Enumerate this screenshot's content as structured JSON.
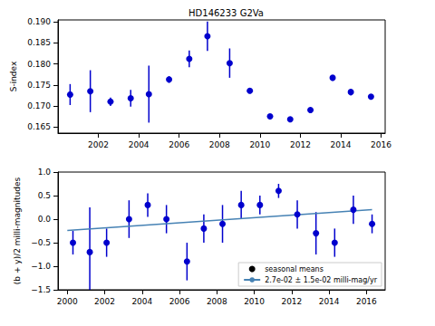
{
  "chart_data": [
    {
      "type": "scatter",
      "title": "HD146233 G2Va",
      "y_label": "S-index",
      "x": [
        2000.6,
        2001.6,
        2002.6,
        2003.6,
        2004.5,
        2005.5,
        2006.5,
        2007.4,
        2008.5,
        2009.5,
        2010.5,
        2011.5,
        2012.5,
        2013.6,
        2014.5,
        2015.5
      ],
      "values": [
        0.1727,
        0.1735,
        0.171,
        0.1718,
        0.1728,
        0.1763,
        0.1812,
        0.1866,
        0.1802,
        0.1736,
        0.1675,
        0.1668,
        0.169,
        0.1767,
        0.1733,
        0.1722
      ],
      "errors": [
        0.0025,
        0.005,
        0.001,
        0.002,
        0.0068,
        0.0008,
        0.002,
        0.0035,
        0.0035,
        0.0005,
        0.0003,
        0.0006,
        0.0007,
        0.0005,
        0.0008,
        0.0003
      ],
      "color": "#0000cd",
      "marker": "circle",
      "xlim": [
        2000.0,
        2016.2
      ],
      "xticks": [
        2002,
        2004,
        2006,
        2008,
        2010,
        2012,
        2014,
        2016
      ],
      "ylim": [
        0.1635,
        0.1905
      ],
      "yticks": [
        0.165,
        {
          "value": 0.17,
          "label": "0.170"
        },
        0.175,
        {
          "value": 0.18,
          "label": "0.180"
        },
        0.185,
        {
          "value": 0.19,
          "label": "0.190"
        }
      ],
      "grid": false
    },
    {
      "type": "scatter",
      "y_label": "(b + y)/2 milli-magnitudes",
      "series": [
        {
          "name": "seasonal means",
          "type": "scatter",
          "marker": "circle",
          "color": "#0000cd",
          "x": [
            2000.3,
            2001.2,
            2002.1,
            2003.3,
            2004.3,
            2005.3,
            2006.4,
            2007.3,
            2008.3,
            2009.3,
            2010.3,
            2011.3,
            2012.3,
            2013.3,
            2014.3,
            2015.3,
            2016.3
          ],
          "values": [
            -0.5,
            -0.7,
            -0.5,
            0.0,
            0.3,
            0.0,
            -0.9,
            -0.2,
            -0.1,
            0.3,
            0.3,
            0.6,
            0.1,
            -0.3,
            -0.5,
            0.2,
            -0.1
          ],
          "errors": [
            0.25,
            0.95,
            0.3,
            0.4,
            0.25,
            0.3,
            0.4,
            0.3,
            0.4,
            0.3,
            0.2,
            0.15,
            0.3,
            0.45,
            0.3,
            0.3,
            0.2
          ]
        },
        {
          "name": "2.7e-02 ± 1.5e-02 milli-mag/yr",
          "type": "line",
          "line_style": "solid",
          "color": "#4682b4",
          "x": [
            2000.0,
            2016.3
          ],
          "values": [
            -0.24,
            0.2
          ]
        }
      ],
      "legend": "lower right",
      "xlim": [
        1999.5,
        2017.0
      ],
      "xticks": [
        2000,
        2002,
        2004,
        2006,
        2008,
        2010,
        2012,
        2014,
        2016
      ],
      "ylim": [
        -1.5,
        1.0
      ],
      "yticks": [
        {
          "value": -1.5,
          "label": "−1.5"
        },
        {
          "value": -1.0,
          "label": "−1.0"
        },
        {
          "value": -0.5,
          "label": "−0.5"
        },
        {
          "value": 0.0,
          "label": "0.0"
        },
        0.5,
        {
          "value": 1.0,
          "label": "1.0"
        }
      ],
      "grid": false
    }
  ]
}
